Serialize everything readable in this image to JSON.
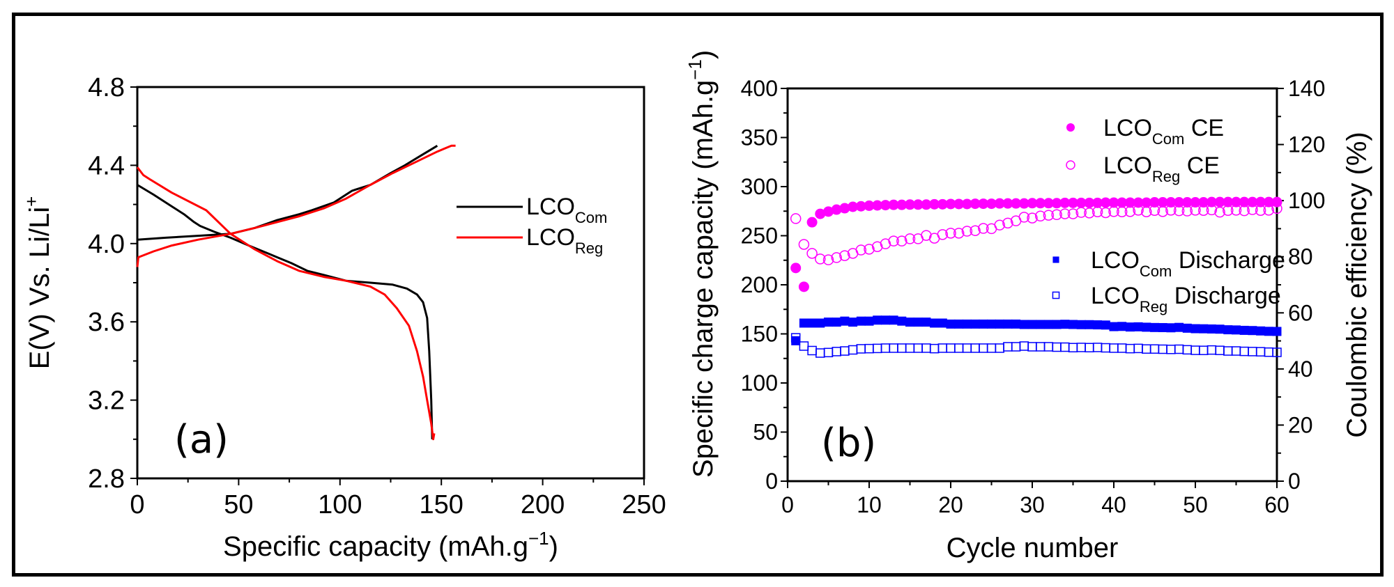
{
  "chart_data": [
    {
      "id": "a",
      "type": "line",
      "panel_label": "(a)",
      "title": "",
      "xlabel": "Specific capacity (mAh.g",
      "xlabel_sup": "−1",
      "xlabel_end": ")",
      "ylabel": "E(V) Vs. Li/Li",
      "ylabel_sup": "+",
      "xlim": [
        0,
        250
      ],
      "ylim": [
        2.8,
        4.8
      ],
      "xticks": [
        0,
        50,
        100,
        150,
        200,
        250
      ],
      "xtick_labels": [
        "0",
        "50",
        "100",
        "150",
        "200",
        "250"
      ],
      "yticks": [
        2.8,
        3.2,
        3.6,
        4.0,
        4.4,
        4.8
      ],
      "ytick_labels": [
        "2.8",
        "3.2",
        "3.6",
        "4.0",
        "4.4",
        "4.8"
      ],
      "grid": false,
      "legend_position": "center-right",
      "legend": [
        {
          "base": "LCO",
          "sub": "Com",
          "color": "#000000"
        },
        {
          "base": "LCO",
          "sub": "Reg",
          "color": "#ff0000"
        }
      ],
      "series": [
        {
          "name": "LCO_Com charge",
          "legend_index": 0,
          "color": "#000000",
          "points": [
            [
              0,
              4.02
            ],
            [
              14,
              4.03
            ],
            [
              30,
              4.04
            ],
            [
              46,
              4.05
            ],
            [
              58,
              4.08
            ],
            [
              69,
              4.12
            ],
            [
              80,
              4.15
            ],
            [
              86,
              4.17
            ],
            [
              97,
              4.21
            ],
            [
              103,
              4.25
            ],
            [
              106,
              4.27
            ],
            [
              115,
              4.3
            ],
            [
              125,
              4.36
            ],
            [
              132,
              4.4
            ],
            [
              140,
              4.45
            ],
            [
              148,
              4.5
            ]
          ]
        },
        {
          "name": "LCO_Com discharge",
          "legend_index": 0,
          "color": "#000000",
          "points": [
            [
              0,
              4.3
            ],
            [
              8,
              4.25
            ],
            [
              17,
              4.19
            ],
            [
              23,
              4.15
            ],
            [
              28,
              4.11
            ],
            [
              31,
              4.09
            ],
            [
              38,
              4.06
            ],
            [
              46,
              4.03
            ],
            [
              55,
              3.99
            ],
            [
              62,
              3.96
            ],
            [
              69,
              3.93
            ],
            [
              76,
              3.9
            ],
            [
              84,
              3.86
            ],
            [
              92,
              3.84
            ],
            [
              103,
              3.81
            ],
            [
              115,
              3.8
            ],
            [
              126,
              3.79
            ],
            [
              133,
              3.77
            ],
            [
              138,
              3.74
            ],
            [
              141,
              3.7
            ],
            [
              143,
              3.62
            ],
            [
              144,
              3.45
            ],
            [
              145,
              3.2
            ],
            [
              145.5,
              3.0
            ]
          ]
        },
        {
          "name": "LCO_Reg charge",
          "legend_index": 1,
          "color": "#ff0000",
          "points": [
            [
              0,
              3.88
            ],
            [
              0.5,
              3.93
            ],
            [
              8,
              3.96
            ],
            [
              17,
              3.99
            ],
            [
              30,
              4.02
            ],
            [
              46,
              4.05
            ],
            [
              58,
              4.08
            ],
            [
              69,
              4.11
            ],
            [
              80,
              4.14
            ],
            [
              92,
              4.18
            ],
            [
              103,
              4.23
            ],
            [
              115,
              4.3
            ],
            [
              126,
              4.36
            ],
            [
              138,
              4.42
            ],
            [
              148,
              4.47
            ],
            [
              155,
              4.5
            ],
            [
              157,
              4.5
            ]
          ]
        },
        {
          "name": "LCO_Reg discharge",
          "legend_index": 1,
          "color": "#ff0000",
          "points": [
            [
              0,
              4.39
            ],
            [
              3,
              4.35
            ],
            [
              6,
              4.33
            ],
            [
              17,
              4.26
            ],
            [
              34,
              4.17
            ],
            [
              46,
              4.05
            ],
            [
              58,
              3.97
            ],
            [
              69,
              3.91
            ],
            [
              80,
              3.86
            ],
            [
              92,
              3.83
            ],
            [
              103,
              3.81
            ],
            [
              115,
              3.78
            ],
            [
              122,
              3.74
            ],
            [
              128,
              3.67
            ],
            [
              134,
              3.58
            ],
            [
              138,
              3.45
            ],
            [
              141,
              3.32
            ],
            [
              143,
              3.2
            ],
            [
              145,
              3.08
            ],
            [
              146,
              3.0
            ],
            [
              146.5,
              3.03
            ]
          ]
        }
      ]
    },
    {
      "id": "b",
      "type": "scatter",
      "panel_label": "(b)",
      "title": "",
      "xlabel": "Cycle number",
      "ylabel": "Specific charge capacity (mAh.g",
      "ylabel_sup": "−1",
      "ylabel_end": ")",
      "ylabel_right": "Coulombic efficiency (%)",
      "xlim": [
        0,
        60
      ],
      "ylim": [
        0,
        400
      ],
      "ylim_right": [
        0,
        140
      ],
      "xticks": [
        0,
        10,
        20,
        30,
        40,
        50,
        60
      ],
      "xtick_labels": [
        "0",
        "10",
        "20",
        "30",
        "40",
        "50",
        "60"
      ],
      "yticks": [
        0,
        50,
        100,
        150,
        200,
        250,
        300,
        350,
        400
      ],
      "ytick_labels": [
        "0",
        "50",
        "100",
        "150",
        "200",
        "250",
        "300",
        "350",
        "400"
      ],
      "yticks_right": [
        0,
        20,
        40,
        60,
        80,
        100,
        120,
        140
      ],
      "ytick_labels_right": [
        "0",
        "20",
        "40",
        "60",
        "80",
        "100",
        "120",
        "140"
      ],
      "grid": false,
      "legend_position": "top-right",
      "legend": [
        {
          "base": "LCO",
          "sub": "Com",
          "suffix": " CE",
          "color": "#ff00ff",
          "marker": "filled-circle"
        },
        {
          "base": "LCO",
          "sub": "Reg",
          "suffix": " CE",
          "color": "#ff00ff",
          "marker": "open-circle"
        },
        {
          "base": "LCO",
          "sub": "Com",
          "suffix": " Discharge",
          "color": "#0000ff",
          "marker": "filled-square"
        },
        {
          "base": "LCO",
          "sub": "Reg",
          "suffix": " Discharge",
          "color": "#0000ff",
          "marker": "open-square"
        }
      ],
      "x": [
        1,
        2,
        3,
        4,
        5,
        6,
        7,
        8,
        9,
        10,
        11,
        12,
        13,
        14,
        15,
        16,
        17,
        18,
        19,
        20,
        21,
        22,
        23,
        24,
        25,
        26,
        27,
        28,
        29,
        30,
        31,
        32,
        33,
        34,
        35,
        36,
        37,
        38,
        39,
        40,
        41,
        42,
        43,
        44,
        45,
        46,
        47,
        48,
        49,
        50,
        51,
        52,
        53,
        54,
        55,
        56,
        57,
        58,
        59,
        60
      ],
      "series": [
        {
          "name": "LCO_Com CE",
          "axis": "right",
          "marker": "filled-circle",
          "color": "#ff00ff",
          "values": [
            76.0,
            69.3,
            92.3,
            95.3,
            96.1,
            96.8,
            97.3,
            97.8,
            98.0,
            98.2,
            98.3,
            98.4,
            98.5,
            98.5,
            98.6,
            98.6,
            98.6,
            98.7,
            98.7,
            98.8,
            98.8,
            98.8,
            98.9,
            98.9,
            98.9,
            99.0,
            99.0,
            99.0,
            99.0,
            99.1,
            99.1,
            99.1,
            99.1,
            99.2,
            99.2,
            99.2,
            99.2,
            99.2,
            99.3,
            99.3,
            99.3,
            99.3,
            99.3,
            99.3,
            99.4,
            99.4,
            99.4,
            99.4,
            99.4,
            99.4,
            99.4,
            99.5,
            99.5,
            99.5,
            99.5,
            99.5,
            99.5,
            99.5,
            99.5,
            99.5
          ]
        },
        {
          "name": "LCO_Reg CE",
          "axis": "right",
          "marker": "open-circle",
          "color": "#ff00ff",
          "values": [
            93.6,
            84.4,
            81.2,
            79.2,
            78.9,
            79.7,
            80.4,
            81.2,
            82.4,
            82.7,
            83.6,
            84.6,
            85.6,
            85.6,
            86.4,
            86.4,
            87.6,
            86.6,
            87.9,
            88.4,
            88.4,
            89.1,
            89.3,
            90.1,
            90.0,
            91.3,
            92.0,
            92.8,
            94.1,
            93.8,
            94.5,
            94.8,
            95.0,
            95.3,
            95.3,
            95.8,
            95.6,
            96.0,
            95.7,
            96.1,
            96.0,
            96.1,
            96.6,
            96.0,
            96.5,
            96.1,
            96.6,
            96.4,
            96.3,
            96.6,
            96.5,
            96.7,
            95.9,
            96.5,
            96.6,
            96.4,
            96.8,
            96.5,
            96.6,
            97.2
          ]
        },
        {
          "name": "LCO_Com Discharge",
          "axis": "left",
          "marker": "filled-square",
          "color": "#0000ff",
          "values": [
            143,
            161,
            161,
            161,
            162,
            162,
            163,
            162,
            163,
            163,
            164,
            164,
            164,
            163,
            162,
            162,
            162,
            161,
            161,
            160,
            160,
            160,
            160,
            160,
            160,
            160,
            160,
            160,
            159.6,
            159.6,
            159.6,
            159.6,
            159.6,
            159.8,
            159.6,
            159.4,
            159.4,
            159.2,
            159,
            157.4,
            157.6,
            157,
            157.2,
            156.8,
            156.5,
            156.4,
            156.2,
            156.6,
            155.8,
            155.3,
            155.2,
            155,
            154.8,
            154.2,
            154,
            153.6,
            153.4,
            153,
            152.6,
            152.5
          ]
        },
        {
          "name": "LCO_Reg Discharge",
          "axis": "left",
          "marker": "open-square",
          "color": "#0000ff",
          "values": [
            146,
            137.6,
            133,
            130.5,
            131,
            132,
            132.6,
            133.7,
            134.8,
            135,
            135.2,
            135.5,
            135.5,
            135.5,
            135.5,
            135.5,
            135.5,
            135,
            135.5,
            135.5,
            135.5,
            135.5,
            135.5,
            135.5,
            135.5,
            135.5,
            136.9,
            136.9,
            137.6,
            136.9,
            136.9,
            136.9,
            136.5,
            136.5,
            136,
            136.2,
            136,
            136.2,
            135.8,
            135.5,
            135.5,
            135,
            135.2,
            134.6,
            134.6,
            134.4,
            134.2,
            134.4,
            133.8,
            133.3,
            133.2,
            133.6,
            133.2,
            132.6,
            132.6,
            132.2,
            132,
            131.8,
            131.4,
            131.2
          ]
        }
      ]
    }
  ]
}
